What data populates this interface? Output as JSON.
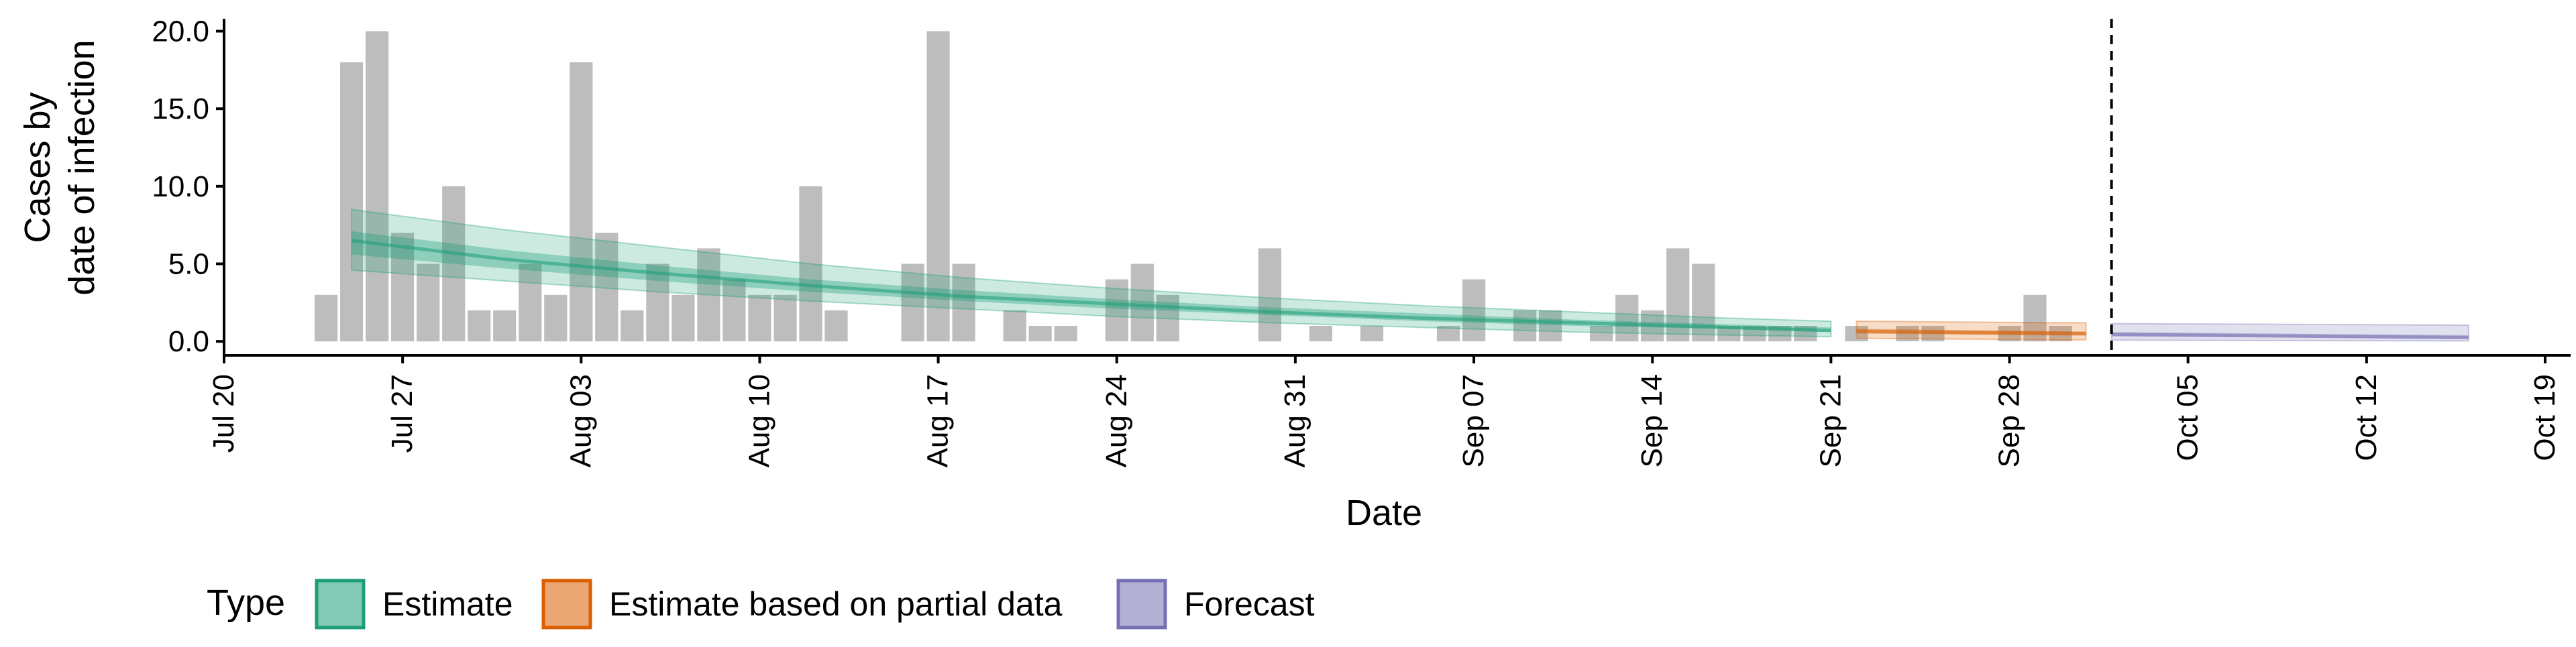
{
  "chart_data": {
    "type": "bar",
    "title": "",
    "xlabel": "Date",
    "ylabel": [
      "Cases by",
      "date of infection"
    ],
    "ylim": [
      -0.9,
      20.8
    ],
    "yticks": [
      0.0,
      5.0,
      10.0,
      15.0,
      20.0
    ],
    "ytick_labels": [
      "0.0",
      "5.0",
      "10.0",
      "15.0",
      "20.0"
    ],
    "xlim": [
      "2020-07-20",
      "2020-10-20"
    ],
    "xticks": [
      "2020-07-20",
      "2020-07-27",
      "2020-08-03",
      "2020-08-10",
      "2020-08-17",
      "2020-08-24",
      "2020-08-31",
      "2020-09-07",
      "2020-09-14",
      "2020-09-21",
      "2020-09-28",
      "2020-10-05",
      "2020-10-12",
      "2020-10-19"
    ],
    "xtick_labels": [
      "Jul 20",
      "Jul 27",
      "Aug 03",
      "Aug 10",
      "Aug 17",
      "Aug 24",
      "Aug 31",
      "Sep 07",
      "Sep 14",
      "Sep 21",
      "Sep 28",
      "Oct 05",
      "Oct 12",
      "Oct 19"
    ],
    "grid": false,
    "colors": {
      "bars": "#bdbdbd",
      "Estimate": "#1b9e77",
      "Estimate based on partial data": "#d95f02",
      "Forecast": "#7570b3"
    },
    "cases": {
      "dates": [
        "2020-07-24",
        "2020-07-25",
        "2020-07-26",
        "2020-07-27",
        "2020-07-28",
        "2020-07-29",
        "2020-07-30",
        "2020-07-31",
        "2020-08-01",
        "2020-08-02",
        "2020-08-03",
        "2020-08-04",
        "2020-08-05",
        "2020-08-06",
        "2020-08-07",
        "2020-08-08",
        "2020-08-09",
        "2020-08-10",
        "2020-08-11",
        "2020-08-12",
        "2020-08-13",
        "2020-08-14",
        "2020-08-15",
        "2020-08-16",
        "2020-08-17",
        "2020-08-18",
        "2020-08-19",
        "2020-08-20",
        "2020-08-21",
        "2020-08-22",
        "2020-08-23",
        "2020-08-24",
        "2020-08-25",
        "2020-08-26",
        "2020-08-27",
        "2020-08-28",
        "2020-08-29",
        "2020-08-30",
        "2020-08-31",
        "2020-09-01",
        "2020-09-02",
        "2020-09-03",
        "2020-09-04",
        "2020-09-05",
        "2020-09-06",
        "2020-09-07",
        "2020-09-08",
        "2020-09-09",
        "2020-09-10",
        "2020-09-11",
        "2020-09-12",
        "2020-09-13",
        "2020-09-14",
        "2020-09-15",
        "2020-09-16",
        "2020-09-17",
        "2020-09-18",
        "2020-09-19",
        "2020-09-20",
        "2020-09-21",
        "2020-09-22",
        "2020-09-23",
        "2020-09-24",
        "2020-09-25",
        "2020-09-26",
        "2020-09-27",
        "2020-09-28",
        "2020-09-29",
        "2020-09-30",
        "2020-10-01"
      ],
      "values": [
        3,
        18,
        20,
        7,
        5,
        10,
        2,
        2,
        5,
        3,
        18,
        7,
        2,
        5,
        3,
        6,
        4,
        3,
        3,
        10,
        2,
        0,
        0,
        5,
        20,
        5,
        0,
        2,
        1,
        1,
        0,
        4,
        5,
        3,
        0,
        0,
        0,
        6,
        0,
        1,
        0,
        1,
        0,
        0,
        1,
        4,
        0,
        2,
        2,
        0,
        1,
        3,
        2,
        6,
        5,
        1,
        1,
        1,
        1,
        0,
        1,
        0,
        1,
        1,
        0,
        0,
        1,
        3,
        1,
        0
      ]
    },
    "series": [
      {
        "name": "Estimate",
        "x": [
          "2020-07-25",
          "2020-07-31",
          "2020-08-06",
          "2020-08-12",
          "2020-08-18",
          "2020-08-24",
          "2020-08-30",
          "2020-09-05",
          "2020-09-11",
          "2020-09-17",
          "2020-09-21"
        ],
        "median": [
          6.5,
          5.3,
          4.4,
          3.6,
          2.9,
          2.4,
          1.9,
          1.5,
          1.2,
          0.9,
          0.7
        ],
        "lower_50": [
          5.6,
          4.7,
          3.9,
          3.2,
          2.6,
          2.1,
          1.7,
          1.3,
          1.0,
          0.8,
          0.6
        ],
        "upper_50": [
          7.1,
          5.9,
          4.9,
          4.0,
          3.3,
          2.7,
          2.2,
          1.8,
          1.4,
          1.1,
          0.9
        ],
        "lower_90": [
          4.6,
          3.9,
          3.2,
          2.6,
          2.1,
          1.6,
          1.2,
          0.9,
          0.6,
          0.4,
          0.3
        ],
        "upper_90": [
          8.5,
          7.2,
          6.1,
          5.0,
          4.1,
          3.4,
          2.8,
          2.3,
          1.9,
          1.5,
          1.3
        ]
      },
      {
        "name": "Estimate based on partial data",
        "x": [
          "2020-09-22",
          "2020-09-26",
          "2020-09-30",
          "2020-10-01"
        ],
        "median": [
          0.65,
          0.58,
          0.52,
          0.5
        ],
        "lower_50": [
          0.5,
          0.44,
          0.38,
          0.37
        ],
        "upper_50": [
          0.82,
          0.74,
          0.66,
          0.64
        ],
        "lower_90": [
          0.2,
          0.15,
          0.1,
          0.1
        ],
        "upper_90": [
          1.3,
          1.25,
          1.2,
          1.2
        ]
      },
      {
        "name": "Forecast",
        "x": [
          "2020-10-02",
          "2020-10-09",
          "2020-10-16"
        ],
        "median": [
          0.45,
          0.35,
          0.25
        ],
        "lower_50": [
          0.33,
          0.25,
          0.16
        ],
        "upper_50": [
          0.6,
          0.5,
          0.4
        ],
        "lower_90": [
          0.08,
          0.05,
          0.03
        ],
        "upper_90": [
          1.15,
          1.1,
          1.05
        ]
      }
    ],
    "reference_line": {
      "x": "2020-10-02",
      "style": "dashed"
    },
    "legend": {
      "title": "Type",
      "placement": "bottom-left",
      "entries": [
        "Estimate",
        "Estimate based on partial data",
        "Forecast"
      ]
    }
  }
}
